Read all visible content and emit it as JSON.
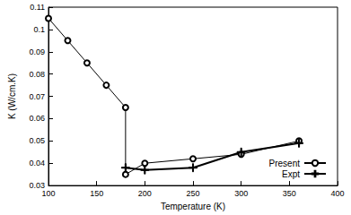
{
  "chart_data": {
    "type": "line",
    "x_label": "Temperature (K)",
    "y_label": "K (W/cm.K)",
    "xlim": [
      100,
      400
    ],
    "xticks": [
      100,
      150,
      200,
      250,
      300,
      350,
      400
    ],
    "ylim": [
      0.03,
      0.11
    ],
    "yticks": [
      0.03,
      0.04,
      0.05,
      0.06,
      0.07,
      0.08,
      0.09,
      0.1,
      0.11
    ],
    "legend": "lower right",
    "grid": false,
    "series": [
      {
        "name": "Present",
        "color": "#000000",
        "marker": "circle",
        "line_style": "solid",
        "x": [
          100,
          120,
          140,
          160,
          180,
          180,
          200,
          250,
          300,
          360
        ],
        "values": [
          0.105,
          0.095,
          0.085,
          0.075,
          0.065,
          0.035,
          0.04,
          0.042,
          0.044,
          0.05
        ]
      },
      {
        "name": "Expt",
        "color": "#000000",
        "marker": "plus",
        "line_style": "solid",
        "x": [
          180,
          200,
          250,
          300,
          360
        ],
        "values": [
          0.038,
          0.037,
          0.038,
          0.045,
          0.049
        ]
      }
    ]
  }
}
